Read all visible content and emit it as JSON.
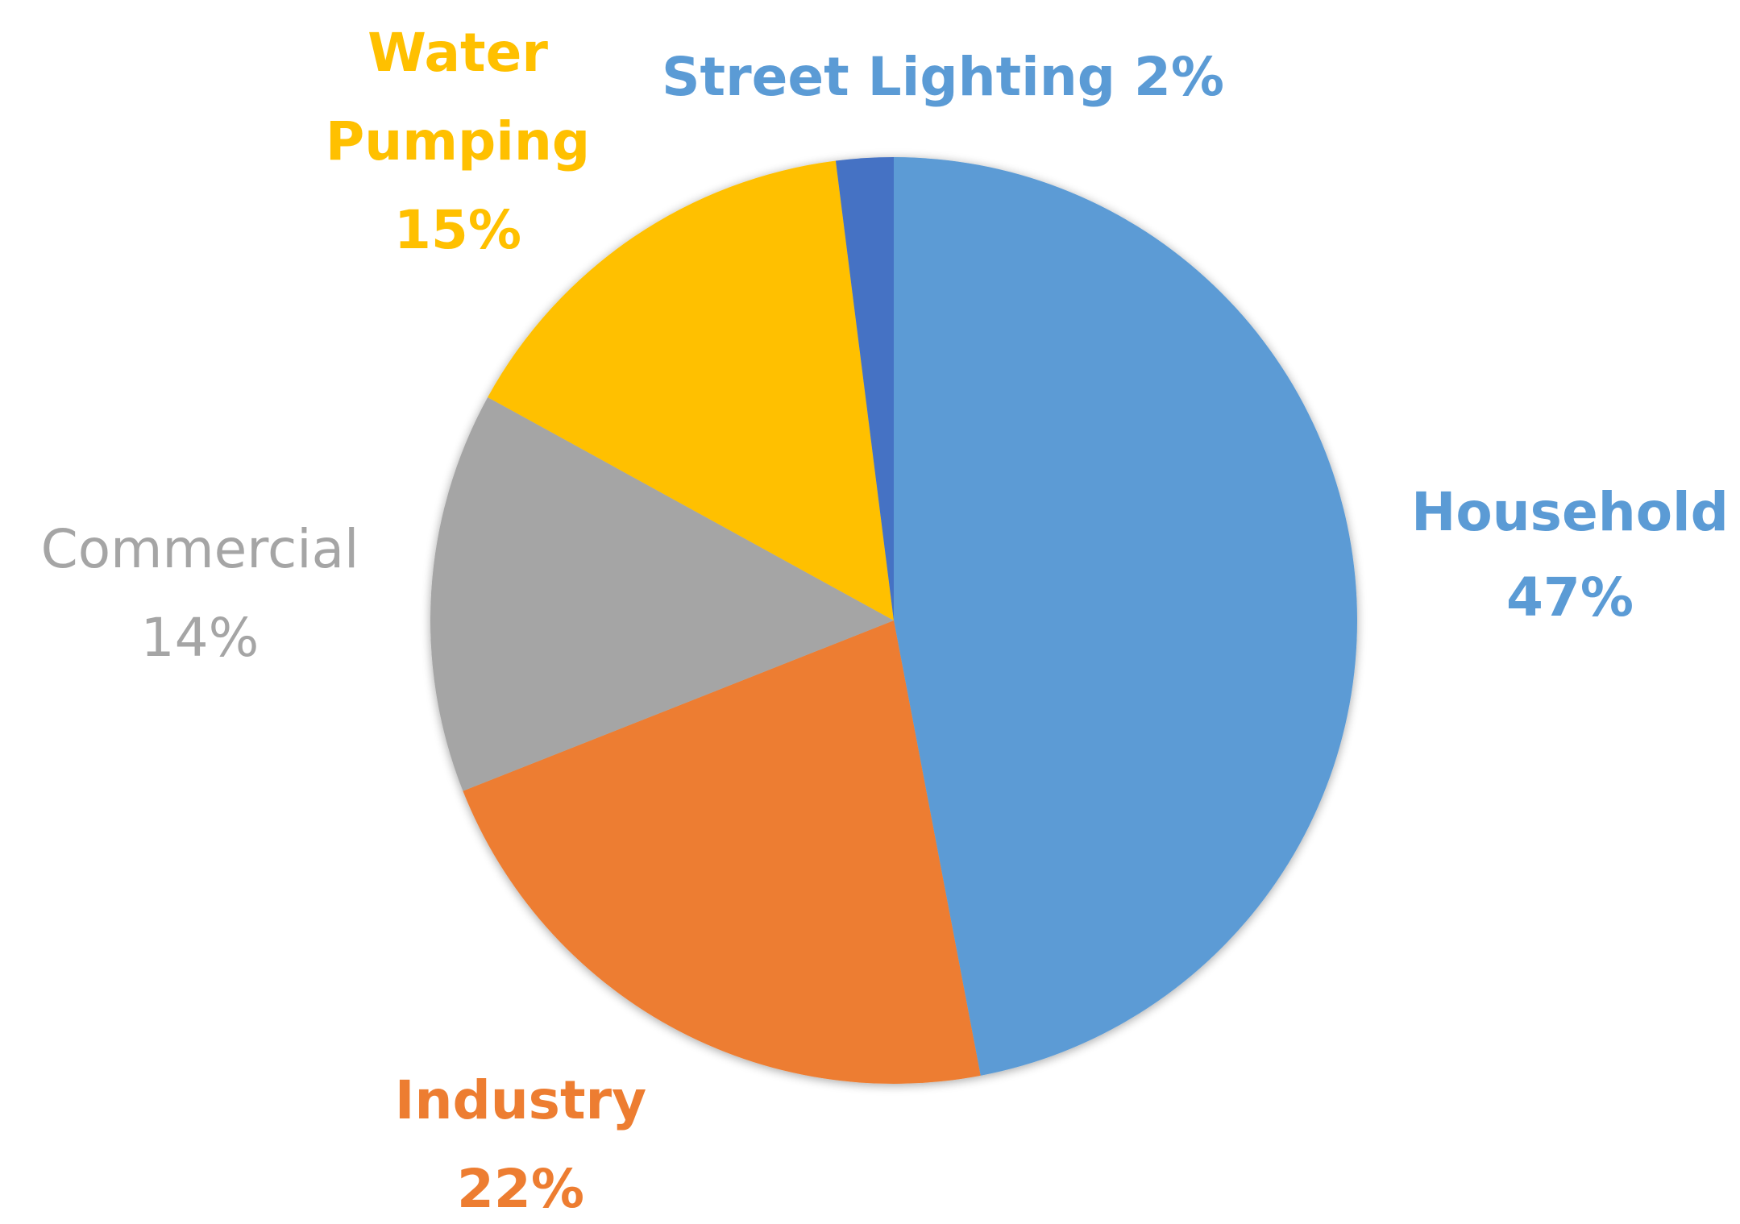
{
  "chart_data": {
    "type": "pie",
    "title": "",
    "start_angle_deg": 0,
    "direction": "clockwise",
    "slices": [
      {
        "label": "Household",
        "value_label": "47%",
        "value": 47,
        "color": "#5b9bd5"
      },
      {
        "label": "Industry",
        "value_label": "22%",
        "value": 22,
        "color": "#ed7d31"
      },
      {
        "label": "Commercial",
        "value_label": "14%",
        "value": 14,
        "color": "#a5a5a5"
      },
      {
        "label": "Water Pumping",
        "value_label": "15%",
        "value": 15,
        "color": "#ffc000"
      },
      {
        "label": "Street Lighting",
        "value_label": "2%",
        "value": 2,
        "color": "#4472c4"
      }
    ]
  }
}
